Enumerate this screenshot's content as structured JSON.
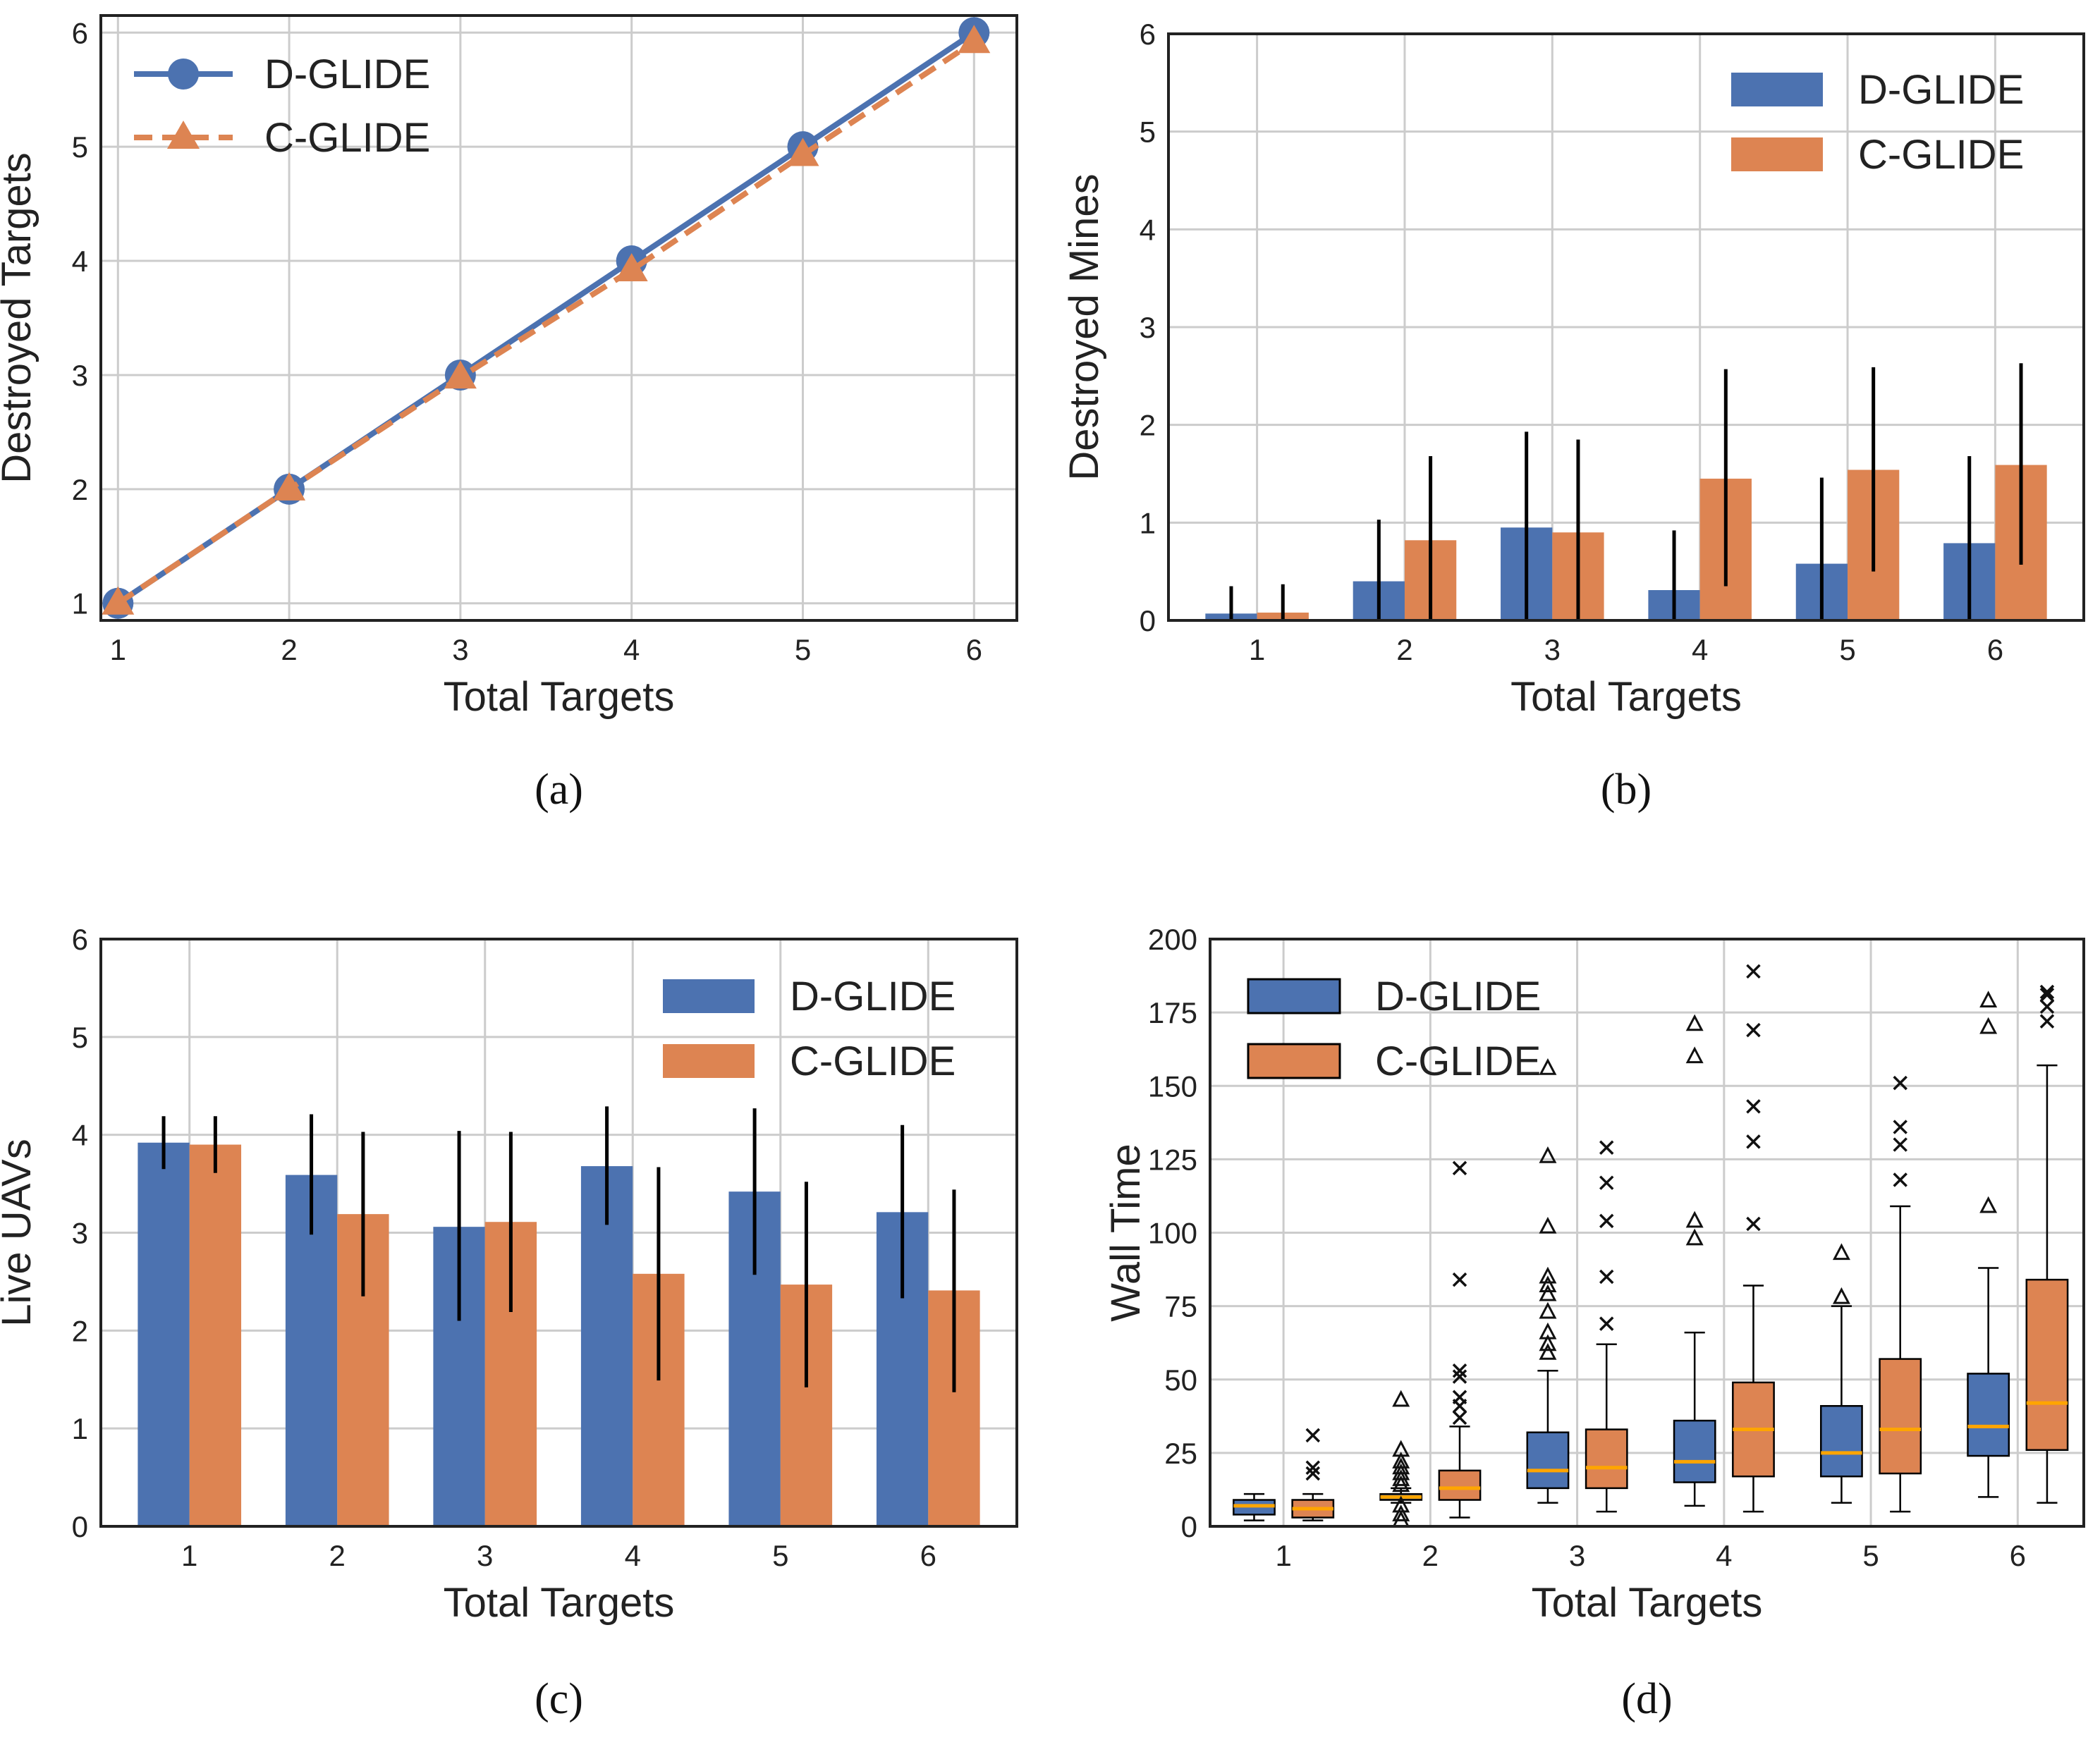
{
  "colors": {
    "dglide": "#4c72b0",
    "cglide": "#dd8452",
    "median": "#ffa500"
  },
  "chart_data": [
    {
      "id": "a",
      "type": "line",
      "caption": "(a)",
      "xlabel": "Total Targets",
      "ylabel": "Destroyed Targets",
      "x": [
        1,
        2,
        3,
        4,
        5,
        6
      ],
      "xlim": [
        0.9,
        6.25
      ],
      "ylim": [
        0.85,
        6.15
      ],
      "yticks": [
        1,
        2,
        3,
        4,
        5,
        6
      ],
      "grid": true,
      "legend_loc": "upper-left",
      "series": [
        {
          "name": "D-GLIDE",
          "values": [
            1,
            2,
            3,
            4,
            5,
            6
          ],
          "style": "solid",
          "marker": "circle"
        },
        {
          "name": "C-GLIDE",
          "values": [
            1,
            2,
            2.98,
            3.92,
            4.93,
            5.92
          ],
          "style": "dashed",
          "marker": "triangle"
        }
      ]
    },
    {
      "id": "b",
      "type": "bar",
      "caption": "(b)",
      "xlabel": "Total Targets",
      "ylabel": "Destroyed Mines",
      "categories": [
        "1",
        "2",
        "3",
        "4",
        "5",
        "6"
      ],
      "ylim": [
        0,
        6
      ],
      "yticks": [
        0,
        1,
        2,
        3,
        4,
        5,
        6
      ],
      "grid": true,
      "legend_loc": "upper-right",
      "series": [
        {
          "name": "D-GLIDE",
          "values": [
            0.07,
            0.4,
            0.95,
            0.31,
            0.58,
            0.79
          ],
          "err_lo": [
            0,
            0,
            0,
            0,
            0,
            0
          ],
          "err_hi": [
            0.35,
            1.03,
            1.93,
            0.92,
            1.46,
            1.68
          ]
        },
        {
          "name": "C-GLIDE",
          "values": [
            0.08,
            0.82,
            0.9,
            1.45,
            1.54,
            1.59
          ],
          "err_lo": [
            0,
            0,
            0,
            0.35,
            0.5,
            0.57
          ],
          "err_hi": [
            0.37,
            1.68,
            1.85,
            2.57,
            2.59,
            2.63
          ]
        }
      ]
    },
    {
      "id": "c",
      "type": "bar",
      "caption": "(c)",
      "xlabel": "Total Targets",
      "ylabel": "Live UAVs",
      "categories": [
        "1",
        "2",
        "3",
        "4",
        "5",
        "6"
      ],
      "ylim": [
        0,
        6
      ],
      "yticks": [
        0,
        1,
        2,
        3,
        4,
        5,
        6
      ],
      "grid": true,
      "legend_loc": "upper-right",
      "series": [
        {
          "name": "D-GLIDE",
          "values": [
            3.92,
            3.59,
            3.06,
            3.68,
            3.42,
            3.21
          ],
          "err_lo": [
            3.65,
            2.98,
            2.1,
            3.08,
            2.57,
            2.33
          ],
          "err_hi": [
            4.19,
            4.21,
            4.04,
            4.29,
            4.27,
            4.1
          ]
        },
        {
          "name": "C-GLIDE",
          "values": [
            3.9,
            3.19,
            3.11,
            2.58,
            2.47,
            2.41
          ],
          "err_lo": [
            3.61,
            2.35,
            2.19,
            1.49,
            1.42,
            1.37
          ],
          "err_hi": [
            4.19,
            4.03,
            4.03,
            3.67,
            3.52,
            3.44
          ]
        }
      ]
    },
    {
      "id": "d",
      "type": "box",
      "caption": "(d)",
      "xlabel": "Total Targets",
      "ylabel": "Wall Time",
      "categories": [
        "1",
        "2",
        "3",
        "4",
        "5",
        "6"
      ],
      "ylim": [
        0,
        200
      ],
      "yticks": [
        0,
        25,
        50,
        75,
        100,
        125,
        150,
        175,
        200
      ],
      "grid": true,
      "legend_loc": "upper-left",
      "series": [
        {
          "name": "D-GLIDE",
          "flier_marker": "triangle",
          "boxes": [
            {
              "whislo": 2,
              "q1": 4,
              "med": 7,
              "q3": 9,
              "whishi": 11,
              "fliers": []
            },
            {
              "whislo": 8,
              "q1": 9,
              "med": 10,
              "q3": 11,
              "whishi": 13,
              "fliers": [
                2,
                4,
                7,
                14,
                16,
                18,
                20,
                22,
                26,
                43
              ]
            },
            {
              "whislo": 8,
              "q1": 13,
              "med": 19,
              "q3": 32,
              "whishi": 53,
              "fliers": [
                59,
                62,
                66,
                73,
                79,
                82,
                85,
                102,
                126,
                156
              ]
            },
            {
              "whislo": 7,
              "q1": 15,
              "med": 22,
              "q3": 36,
              "whishi": 66,
              "fliers": [
                98,
                104,
                160,
                171
              ]
            },
            {
              "whislo": 8,
              "q1": 17,
              "med": 25,
              "q3": 41,
              "whishi": 75,
              "fliers": [
                78,
                93
              ]
            },
            {
              "whislo": 10,
              "q1": 24,
              "med": 34,
              "q3": 52,
              "whishi": 88,
              "fliers": [
                109,
                170,
                179
              ]
            }
          ]
        },
        {
          "name": "C-GLIDE",
          "flier_marker": "x",
          "boxes": [
            {
              "whislo": 2,
              "q1": 3,
              "med": 6,
              "q3": 9,
              "whishi": 11,
              "fliers": [
                18,
                20,
                31
              ]
            },
            {
              "whislo": 3,
              "q1": 9,
              "med": 13,
              "q3": 19,
              "whishi": 34,
              "fliers": [
                37,
                41,
                44,
                51,
                53,
                84,
                122
              ]
            },
            {
              "whislo": 5,
              "q1": 13,
              "med": 20,
              "q3": 33,
              "whishi": 62,
              "fliers": [
                69,
                85,
                104,
                117,
                129
              ]
            },
            {
              "whislo": 5,
              "q1": 17,
              "med": 33,
              "q3": 49,
              "whishi": 82,
              "fliers": [
                103,
                131,
                143,
                169,
                189
              ]
            },
            {
              "whislo": 5,
              "q1": 18,
              "med": 33,
              "q3": 57,
              "whishi": 109,
              "fliers": [
                118,
                130,
                136,
                151
              ]
            },
            {
              "whislo": 8,
              "q1": 26,
              "med": 42,
              "q3": 84,
              "whishi": 157,
              "fliers": [
                172,
                177,
                181,
                182
              ]
            }
          ]
        }
      ]
    }
  ]
}
